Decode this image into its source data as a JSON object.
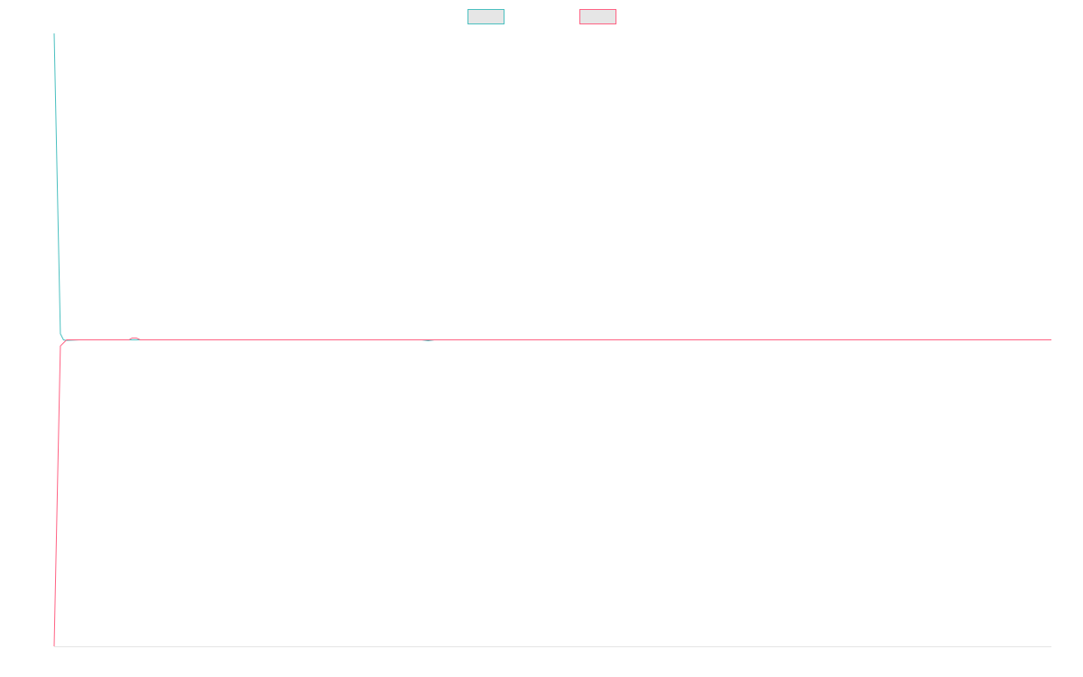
{
  "chart_data": {
    "type": "line",
    "title": "",
    "xlabel": "",
    "ylabel": "",
    "grid": false,
    "legend_position": "top-center",
    "xlim": [
      0,
      160
    ],
    "ylim": [
      -1,
      1
    ],
    "series": [
      {
        "color": "#4bc0c0",
        "legend_fill": "#e6e6e6",
        "points": [
          [
            0,
            1.0
          ],
          [
            1,
            0.02
          ],
          [
            1.5,
            0.0
          ],
          [
            2,
            -0.002
          ],
          [
            4,
            0.0
          ],
          [
            12,
            0.0
          ],
          [
            12.5,
            0.0
          ],
          [
            13,
            0.0
          ],
          [
            59,
            0.0
          ],
          [
            60,
            -0.003
          ],
          [
            61,
            0.0
          ],
          [
            160,
            0.0
          ]
        ]
      },
      {
        "color": "#ff6384",
        "legend_fill": "#e6e6e6",
        "points": [
          [
            0,
            -1.0
          ],
          [
            1,
            -0.02
          ],
          [
            1.5,
            -0.01
          ],
          [
            2,
            0.0
          ],
          [
            12,
            0.0
          ],
          [
            12.5,
            0.006
          ],
          [
            13.2,
            0.006
          ],
          [
            13.8,
            0.0
          ],
          [
            59,
            0.0
          ],
          [
            160,
            0.0
          ]
        ]
      }
    ]
  }
}
